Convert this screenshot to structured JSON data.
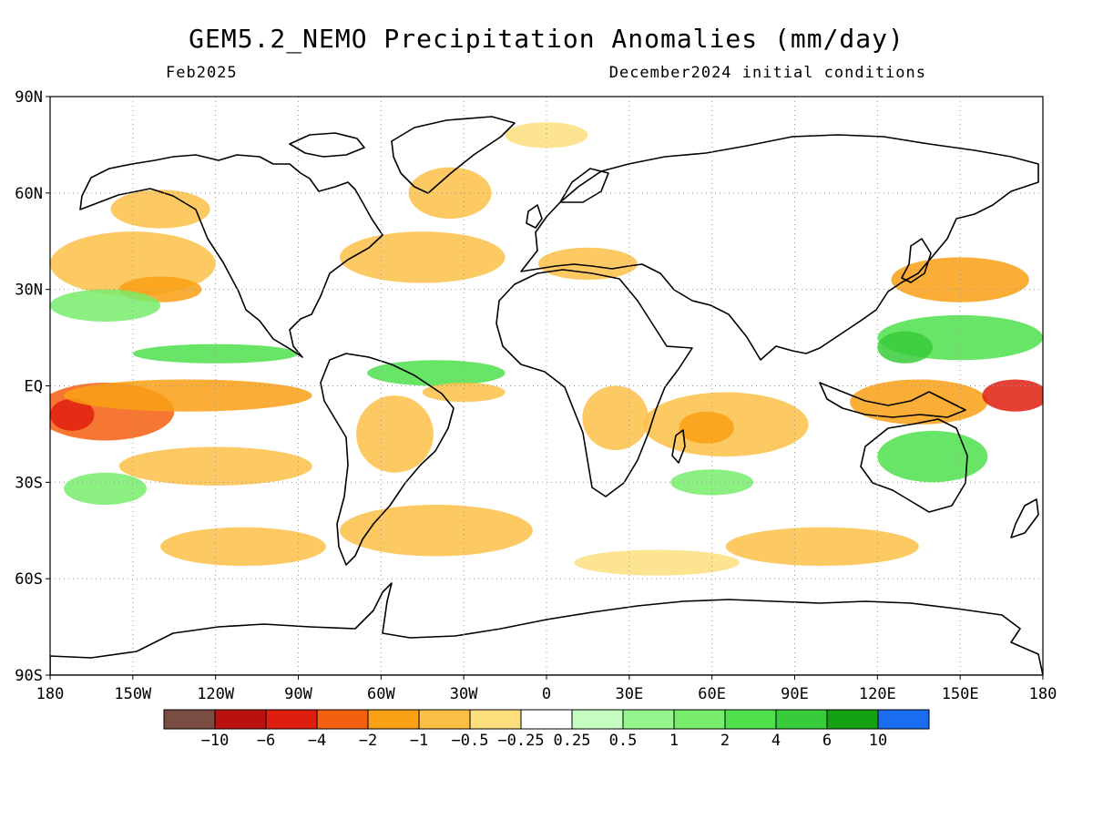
{
  "header": {
    "title": "GEM5.2_NEMO Precipitation Anomalies (mm/day)",
    "valid_month": "Feb2025",
    "initial_conditions": "December2024 initial conditions"
  },
  "map": {
    "projection": "cylindrical equidistant",
    "lon_range": [
      -180,
      180
    ],
    "lat_range": [
      -90,
      90
    ],
    "grid": "dotted",
    "lat_ticks": [
      {
        "value": 90,
        "label": "90N"
      },
      {
        "value": 60,
        "label": "60N"
      },
      {
        "value": 30,
        "label": "30N"
      },
      {
        "value": 0,
        "label": "EQ"
      },
      {
        "value": -30,
        "label": "30S"
      },
      {
        "value": -60,
        "label": "60S"
      },
      {
        "value": -90,
        "label": "90S"
      }
    ],
    "lon_ticks": [
      {
        "value": -180,
        "label": "180"
      },
      {
        "value": -150,
        "label": "150W"
      },
      {
        "value": -120,
        "label": "120W"
      },
      {
        "value": -90,
        "label": "90W"
      },
      {
        "value": -60,
        "label": "60W"
      },
      {
        "value": -30,
        "label": "30W"
      },
      {
        "value": 0,
        "label": "0"
      },
      {
        "value": 30,
        "label": "30E"
      },
      {
        "value": 60,
        "label": "60E"
      },
      {
        "value": 90,
        "label": "90E"
      },
      {
        "value": 120,
        "label": "120E"
      },
      {
        "value": 150,
        "label": "150E"
      },
      {
        "value": 180,
        "label": "180"
      }
    ],
    "anomaly_regions": [
      {
        "name": "trop-pacific-neg",
        "level": -4,
        "cx": -160,
        "cy": -8,
        "rx": 25,
        "ry": 9
      },
      {
        "name": "trop-pacific-neg-core",
        "level": -6,
        "cx": -172,
        "cy": -9,
        "rx": 8,
        "ry": 5
      },
      {
        "name": "trop-pacific-neg-tail",
        "level": -2,
        "cx": -130,
        "cy": -3,
        "rx": 45,
        "ry": 5
      },
      {
        "name": "spcz-east-neg",
        "level": -1,
        "cx": -120,
        "cy": -25,
        "rx": 35,
        "ry": 6
      },
      {
        "name": "n-pacific-neg",
        "level": -1,
        "cx": -150,
        "cy": 38,
        "rx": 30,
        "ry": 10
      },
      {
        "name": "n-pacific-neg2",
        "level": -2,
        "cx": -140,
        "cy": 30,
        "rx": 15,
        "ry": 4
      },
      {
        "name": "gulf-alaska-neg",
        "level": -1,
        "cx": -140,
        "cy": 55,
        "rx": 18,
        "ry": 6
      },
      {
        "name": "ne-pacific-pos",
        "level": 1,
        "cx": -160,
        "cy": 25,
        "rx": 20,
        "ry": 5
      },
      {
        "name": "itcz-pacific-pos",
        "level": 2,
        "cx": -120,
        "cy": 10,
        "rx": 30,
        "ry": 3
      },
      {
        "name": "s-pacific-pos",
        "level": 1,
        "cx": -160,
        "cy": -32,
        "rx": 15,
        "ry": 5
      },
      {
        "name": "atlantic-itcz-pos",
        "level": 2,
        "cx": -40,
        "cy": 4,
        "rx": 25,
        "ry": 4
      },
      {
        "name": "atlantic-neg",
        "level": -1,
        "cx": -30,
        "cy": -2,
        "rx": 15,
        "ry": 3
      },
      {
        "name": "n-atlantic-neg",
        "level": -1,
        "cx": -45,
        "cy": 40,
        "rx": 30,
        "ry": 8
      },
      {
        "name": "n-atlantic-neg2",
        "level": -1,
        "cx": -35,
        "cy": 60,
        "rx": 15,
        "ry": 8
      },
      {
        "name": "amazon-neg",
        "level": -1,
        "cx": -55,
        "cy": -15,
        "rx": 14,
        "ry": 12
      },
      {
        "name": "s-atlantic-neg",
        "level": -1,
        "cx": -40,
        "cy": -45,
        "rx": 35,
        "ry": 8
      },
      {
        "name": "s-africa-neg",
        "level": -1,
        "cx": 25,
        "cy": -10,
        "rx": 12,
        "ry": 10
      },
      {
        "name": "indian-neg",
        "level": -1,
        "cx": 65,
        "cy": -12,
        "rx": 30,
        "ry": 10
      },
      {
        "name": "indian-neg-core",
        "level": -2,
        "cx": 58,
        "cy": -13,
        "rx": 10,
        "ry": 5
      },
      {
        "name": "indian-pos",
        "level": 1,
        "cx": 60,
        "cy": -30,
        "rx": 15,
        "ry": 4
      },
      {
        "name": "maritime-neg",
        "level": -2,
        "cx": 135,
        "cy": -5,
        "rx": 25,
        "ry": 7
      },
      {
        "name": "w-pacific-neg-core",
        "level": -6,
        "cx": 170,
        "cy": -3,
        "rx": 12,
        "ry": 5
      },
      {
        "name": "w-pacific-pos",
        "level": 2,
        "cx": 150,
        "cy": 15,
        "rx": 30,
        "ry": 7
      },
      {
        "name": "philippines-pos",
        "level": 4,
        "cx": 130,
        "cy": 12,
        "rx": 10,
        "ry": 5
      },
      {
        "name": "japan-neg",
        "level": -2,
        "cx": 150,
        "cy": 33,
        "rx": 25,
        "ry": 7
      },
      {
        "name": "australia-pos",
        "level": 2,
        "cx": 140,
        "cy": -22,
        "rx": 20,
        "ry": 8
      },
      {
        "name": "s-indian-neg",
        "level": -1,
        "cx": 100,
        "cy": -50,
        "rx": 35,
        "ry": 6
      },
      {
        "name": "s-pacific-neg",
        "level": -1,
        "cx": -110,
        "cy": -50,
        "rx": 30,
        "ry": 6
      },
      {
        "name": "southern-ocean-neg",
        "level": -0.5,
        "cx": 40,
        "cy": -55,
        "rx": 30,
        "ry": 4
      },
      {
        "name": "mediterranean-neg",
        "level": -1,
        "cx": 15,
        "cy": 38,
        "rx": 18,
        "ry": 5
      },
      {
        "name": "arctic-neg",
        "level": -0.5,
        "cx": 0,
        "cy": 78,
        "rx": 15,
        "ry": 4
      }
    ]
  },
  "legend": {
    "colors": [
      "#7a4d43",
      "#bc0f0f",
      "#e01e10",
      "#f45f10",
      "#f9a014",
      "#fbbf46",
      "#fddf7e",
      "#ffffff",
      "#c5fcc0",
      "#96f68e",
      "#78ec6c",
      "#4ee14c",
      "#37cc39",
      "#14a113",
      "#1a6cf0"
    ],
    "labels": [
      "−10",
      "−6",
      "−4",
      "−2",
      "−1",
      "−0.5",
      "−0.25",
      "0.25",
      "0.5",
      "1",
      "2",
      "4",
      "6",
      "10"
    ]
  }
}
